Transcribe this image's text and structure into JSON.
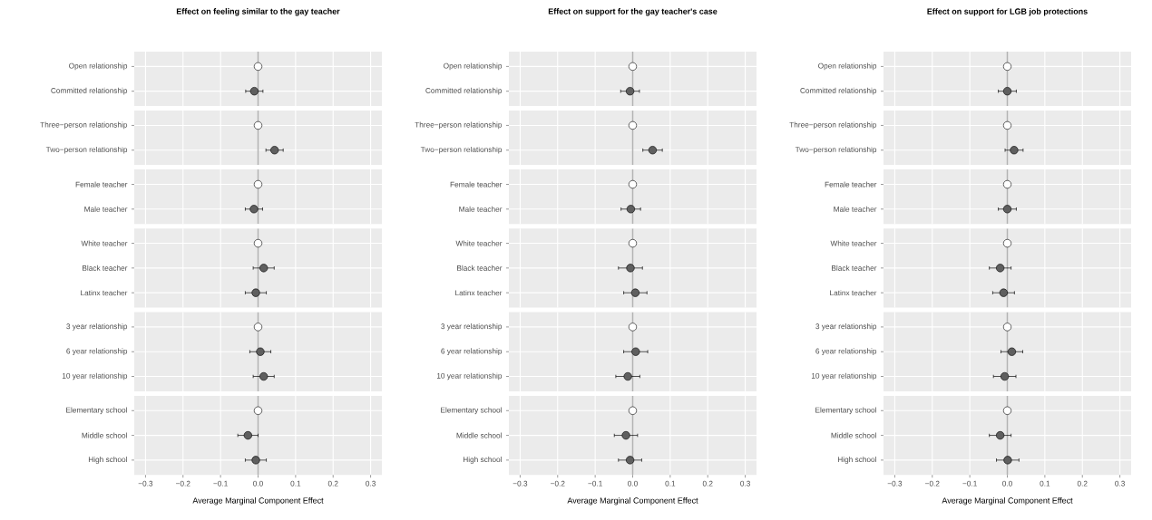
{
  "chart_data": [
    {
      "type": "scatter",
      "orientation": "horizontal",
      "title": "Effect on feeling similar to the gay teacher",
      "categories": [
        "Open relationship",
        "Committed relationship"
      ],
      "values": [
        0,
        -0.01
      ],
      "errors": [
        null,
        0.023
      ],
      "colors": [
        "#ffffff",
        "#5f5f5f"
      ],
      "xlim": [
        -0.33,
        0.33
      ],
      "xticks": [
        -0.3,
        -0.2,
        -0.1,
        0,
        0.1,
        0.2,
        0.3
      ],
      "ref_lines": [
        {
          "axis": "x",
          "value": 0,
          "color": "#b3b3b3"
        }
      ],
      "grid": true,
      "tick_labels": "y"
    },
    {
      "type": "scatter",
      "orientation": "horizontal",
      "categories": [
        "Three−person relationship",
        "Two−person relationship"
      ],
      "values": [
        0,
        0.044
      ],
      "errors": [
        null,
        0.023
      ],
      "colors": [
        "#ffffff",
        "#5f5f5f"
      ],
      "xlim": [
        -0.33,
        0.33
      ],
      "xticks": [
        -0.3,
        -0.2,
        -0.1,
        0,
        0.1,
        0.2,
        0.3
      ],
      "ref_lines": [
        {
          "axis": "x",
          "value": 0,
          "color": "#b3b3b3"
        }
      ],
      "grid": true,
      "tick_labels": "y"
    },
    {
      "type": "scatter",
      "orientation": "horizontal",
      "categories": [
        "Female teacher",
        "Male teacher"
      ],
      "values": [
        0,
        -0.011
      ],
      "errors": [
        null,
        0.023
      ],
      "colors": [
        "#ffffff",
        "#5f5f5f"
      ],
      "xlim": [
        -0.33,
        0.33
      ],
      "xticks": [
        -0.3,
        -0.2,
        -0.1,
        0,
        0.1,
        0.2,
        0.3
      ],
      "ref_lines": [
        {
          "axis": "x",
          "value": 0,
          "color": "#b3b3b3"
        }
      ],
      "grid": true,
      "tick_labels": "y"
    },
    {
      "type": "scatter",
      "orientation": "horizontal",
      "categories": [
        "White teacher",
        "Black teacher",
        "Latinx teacher"
      ],
      "values": [
        0,
        0.015,
        -0.006
      ],
      "errors": [
        null,
        0.028,
        0.028
      ],
      "colors": [
        "#ffffff",
        "#5f5f5f",
        "#5f5f5f"
      ],
      "xlim": [
        -0.33,
        0.33
      ],
      "xticks": [
        -0.3,
        -0.2,
        -0.1,
        0,
        0.1,
        0.2,
        0.3
      ],
      "ref_lines": [
        {
          "axis": "x",
          "value": 0,
          "color": "#b3b3b3"
        }
      ],
      "grid": true,
      "tick_labels": "y"
    },
    {
      "type": "scatter",
      "orientation": "horizontal",
      "categories": [
        "3 year relationship",
        "6 year relationship",
        "10 year relationship"
      ],
      "values": [
        0,
        0.006,
        0.015
      ],
      "errors": [
        null,
        0.028,
        0.028
      ],
      "colors": [
        "#ffffff",
        "#5f5f5f",
        "#5f5f5f"
      ],
      "xlim": [
        -0.33,
        0.33
      ],
      "xticks": [
        -0.3,
        -0.2,
        -0.1,
        0,
        0.1,
        0.2,
        0.3
      ],
      "ref_lines": [
        {
          "axis": "x",
          "value": 0,
          "color": "#b3b3b3"
        }
      ],
      "grid": true,
      "tick_labels": "y"
    },
    {
      "type": "scatter",
      "orientation": "horizontal",
      "xlabel": "Average Marginal Component Effect",
      "categories": [
        "Elementary school",
        "Middle school",
        "High school"
      ],
      "values": [
        0,
        -0.027,
        -0.006
      ],
      "errors": [
        null,
        0.027,
        0.028
      ],
      "colors": [
        "#ffffff",
        "#5f5f5f",
        "#5f5f5f"
      ],
      "xlim": [
        -0.33,
        0.33
      ],
      "xticks": [
        {
          "value": -0.3,
          "label": "−0.3"
        },
        {
          "value": -0.2,
          "label": "−0.2"
        },
        {
          "value": -0.1,
          "label": "−0.1"
        },
        {
          "value": 0,
          "label": "0.0"
        },
        {
          "value": 0.1,
          "label": "0.1"
        },
        {
          "value": 0.2,
          "label": "0.2"
        },
        {
          "value": 0.3,
          "label": "0.3"
        }
      ],
      "ref_lines": [
        {
          "axis": "x",
          "value": 0,
          "color": "#b3b3b3"
        }
      ],
      "grid": true
    },
    {
      "type": "scatter",
      "orientation": "horizontal",
      "title": "Effect on support for the gay teacher's case",
      "categories": [
        "Open relationship",
        "Committed relationship"
      ],
      "values": [
        0,
        -0.007
      ],
      "errors": [
        null,
        0.025
      ],
      "colors": [
        "#ffffff",
        "#5f5f5f"
      ],
      "xlim": [
        -0.33,
        0.33
      ],
      "xticks": [
        -0.3,
        -0.2,
        -0.1,
        0,
        0.1,
        0.2,
        0.3
      ],
      "ref_lines": [
        {
          "axis": "x",
          "value": 0,
          "color": "#b3b3b3"
        }
      ],
      "grid": true,
      "tick_labels": "y"
    },
    {
      "type": "scatter",
      "orientation": "horizontal",
      "categories": [
        "Three−person relationship",
        "Two−person relationship"
      ],
      "values": [
        0,
        0.053
      ],
      "errors": [
        null,
        0.026
      ],
      "colors": [
        "#ffffff",
        "#5f5f5f"
      ],
      "xlim": [
        -0.33,
        0.33
      ],
      "xticks": [
        -0.3,
        -0.2,
        -0.1,
        0,
        0.1,
        0.2,
        0.3
      ],
      "ref_lines": [
        {
          "axis": "x",
          "value": 0,
          "color": "#b3b3b3"
        }
      ],
      "grid": true,
      "tick_labels": "y"
    },
    {
      "type": "scatter",
      "orientation": "horizontal",
      "categories": [
        "Female teacher",
        "Male teacher"
      ],
      "values": [
        0,
        -0.005
      ],
      "errors": [
        null,
        0.026
      ],
      "colors": [
        "#ffffff",
        "#5f5f5f"
      ],
      "xlim": [
        -0.33,
        0.33
      ],
      "xticks": [
        -0.3,
        -0.2,
        -0.1,
        0,
        0.1,
        0.2,
        0.3
      ],
      "ref_lines": [
        {
          "axis": "x",
          "value": 0,
          "color": "#b3b3b3"
        }
      ],
      "grid": true,
      "tick_labels": "y"
    },
    {
      "type": "scatter",
      "orientation": "horizontal",
      "categories": [
        "White teacher",
        "Black teacher",
        "Latinx teacher"
      ],
      "values": [
        0,
        -0.006,
        0.007
      ],
      "errors": [
        null,
        0.032,
        0.031
      ],
      "colors": [
        "#ffffff",
        "#5f5f5f",
        "#5f5f5f"
      ],
      "xlim": [
        -0.33,
        0.33
      ],
      "xticks": [
        -0.3,
        -0.2,
        -0.1,
        0,
        0.1,
        0.2,
        0.3
      ],
      "ref_lines": [
        {
          "axis": "x",
          "value": 0,
          "color": "#b3b3b3"
        }
      ],
      "grid": true,
      "tick_labels": "y"
    },
    {
      "type": "scatter",
      "orientation": "horizontal",
      "categories": [
        "3 year relationship",
        "6 year relationship",
        "10 year relationship"
      ],
      "values": [
        0,
        0.008,
        -0.013
      ],
      "errors": [
        null,
        0.032,
        0.032
      ],
      "colors": [
        "#ffffff",
        "#5f5f5f",
        "#5f5f5f"
      ],
      "xlim": [
        -0.33,
        0.33
      ],
      "xticks": [
        -0.3,
        -0.2,
        -0.1,
        0,
        0.1,
        0.2,
        0.3
      ],
      "ref_lines": [
        {
          "axis": "x",
          "value": 0,
          "color": "#b3b3b3"
        }
      ],
      "grid": true,
      "tick_labels": "y"
    },
    {
      "type": "scatter",
      "orientation": "horizontal",
      "xlabel": "Average Marginal Component Effect",
      "categories": [
        "Elementary school",
        "Middle school",
        "High school"
      ],
      "values": [
        0,
        -0.018,
        -0.007
      ],
      "errors": [
        null,
        0.031,
        0.031
      ],
      "colors": [
        "#ffffff",
        "#5f5f5f",
        "#5f5f5f"
      ],
      "xlim": [
        -0.33,
        0.33
      ],
      "xticks": [
        {
          "value": -0.3,
          "label": "−0.3"
        },
        {
          "value": -0.2,
          "label": "−0.2"
        },
        {
          "value": -0.1,
          "label": "−0.1"
        },
        {
          "value": 0,
          "label": "0.0"
        },
        {
          "value": 0.1,
          "label": "0.1"
        },
        {
          "value": 0.2,
          "label": "0.2"
        },
        {
          "value": 0.3,
          "label": "0.3"
        }
      ],
      "ref_lines": [
        {
          "axis": "x",
          "value": 0,
          "color": "#b3b3b3"
        }
      ],
      "grid": true
    },
    {
      "type": "scatter",
      "orientation": "horizontal",
      "title": "Effect on support for LGB job protections",
      "categories": [
        "Open relationship",
        "Committed relationship"
      ],
      "values": [
        0,
        0.0
      ],
      "errors": [
        null,
        0.024
      ],
      "colors": [
        "#ffffff",
        "#5f5f5f"
      ],
      "xlim": [
        -0.33,
        0.33
      ],
      "xticks": [
        -0.3,
        -0.2,
        -0.1,
        0,
        0.1,
        0.2,
        0.3
      ],
      "ref_lines": [
        {
          "axis": "x",
          "value": 0,
          "color": "#b3b3b3"
        }
      ],
      "grid": true,
      "tick_labels": "y"
    },
    {
      "type": "scatter",
      "orientation": "horizontal",
      "categories": [
        "Three−person relationship",
        "Two−person relationship"
      ],
      "values": [
        0,
        0.018
      ],
      "errors": [
        null,
        0.024
      ],
      "colors": [
        "#ffffff",
        "#5f5f5f"
      ],
      "xlim": [
        -0.33,
        0.33
      ],
      "xticks": [
        -0.3,
        -0.2,
        -0.1,
        0,
        0.1,
        0.2,
        0.3
      ],
      "ref_lines": [
        {
          "axis": "x",
          "value": 0,
          "color": "#b3b3b3"
        }
      ],
      "grid": true,
      "tick_labels": "y"
    },
    {
      "type": "scatter",
      "orientation": "horizontal",
      "categories": [
        "Female teacher",
        "Male teacher"
      ],
      "values": [
        0,
        0.0
      ],
      "errors": [
        null,
        0.024
      ],
      "colors": [
        "#ffffff",
        "#5f5f5f"
      ],
      "xlim": [
        -0.33,
        0.33
      ],
      "xticks": [
        -0.3,
        -0.2,
        -0.1,
        0,
        0.1,
        0.2,
        0.3
      ],
      "ref_lines": [
        {
          "axis": "x",
          "value": 0,
          "color": "#b3b3b3"
        }
      ],
      "grid": true,
      "tick_labels": "y"
    },
    {
      "type": "scatter",
      "orientation": "horizontal",
      "categories": [
        "White teacher",
        "Black teacher",
        "Latinx teacher"
      ],
      "values": [
        0,
        -0.019,
        -0.01
      ],
      "errors": [
        null,
        0.029,
        0.029
      ],
      "colors": [
        "#ffffff",
        "#5f5f5f",
        "#5f5f5f"
      ],
      "xlim": [
        -0.33,
        0.33
      ],
      "xticks": [
        -0.3,
        -0.2,
        -0.1,
        0,
        0.1,
        0.2,
        0.3
      ],
      "ref_lines": [
        {
          "axis": "x",
          "value": 0,
          "color": "#b3b3b3"
        }
      ],
      "grid": true,
      "tick_labels": "y"
    },
    {
      "type": "scatter",
      "orientation": "horizontal",
      "categories": [
        "3 year relationship",
        "6 year relationship",
        "10 year relationship"
      ],
      "values": [
        0,
        0.012,
        -0.007
      ],
      "errors": [
        null,
        0.029,
        0.03
      ],
      "colors": [
        "#ffffff",
        "#5f5f5f",
        "#5f5f5f"
      ],
      "xlim": [
        -0.33,
        0.33
      ],
      "xticks": [
        -0.3,
        -0.2,
        -0.1,
        0,
        0.1,
        0.2,
        0.3
      ],
      "ref_lines": [
        {
          "axis": "x",
          "value": 0,
          "color": "#b3b3b3"
        }
      ],
      "grid": true,
      "tick_labels": "y"
    },
    {
      "type": "scatter",
      "orientation": "horizontal",
      "xlabel": "Average Marginal Component Effect",
      "categories": [
        "Elementary school",
        "Middle school",
        "High school"
      ],
      "values": [
        0,
        -0.019,
        0.001
      ],
      "errors": [
        null,
        0.029,
        0.03
      ],
      "colors": [
        "#ffffff",
        "#5f5f5f",
        "#5f5f5f"
      ],
      "xlim": [
        -0.33,
        0.33
      ],
      "xticks": [
        {
          "value": -0.3,
          "label": "−0.3"
        },
        {
          "value": -0.2,
          "label": "−0.2"
        },
        {
          "value": -0.1,
          "label": "−0.1"
        },
        {
          "value": 0,
          "label": "0.0"
        },
        {
          "value": 0.1,
          "label": "0.1"
        },
        {
          "value": 0.2,
          "label": "0.2"
        },
        {
          "value": 0.3,
          "label": "0.3"
        }
      ],
      "ref_lines": [
        {
          "axis": "x",
          "value": 0,
          "color": "#b3b3b3"
        }
      ],
      "grid": true
    }
  ]
}
